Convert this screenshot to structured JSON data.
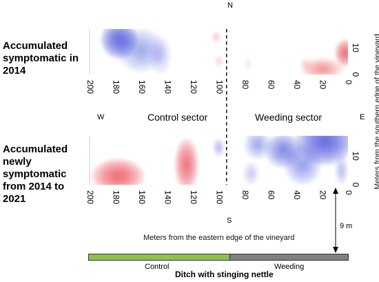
{
  "compass": {
    "north": "N",
    "south": "S",
    "west": "W",
    "east": "E"
  },
  "panels": [
    {
      "label_lines": [
        "Accumulated",
        "symptomatic in",
        "2014"
      ]
    },
    {
      "label_lines": [
        "Accumulated",
        "newly",
        "symptomatic",
        "from 2014 to",
        "2021"
      ]
    }
  ],
  "sectors": {
    "control": "Control sector",
    "weeding": "Weeding sector"
  },
  "axes": {
    "x_label": "Meters from the eastern edge of the vineyard",
    "y_label": "Meters from the southern edge of the vineyard",
    "x_ticks": [
      200,
      180,
      160,
      140,
      120,
      100,
      80,
      60,
      40,
      20,
      0
    ],
    "y_ticks": [
      0,
      10
    ],
    "xlim": [
      200,
      0
    ],
    "ylim": [
      0,
      17
    ],
    "divider_x": 94
  },
  "bottom_bar": {
    "control_label": "Control",
    "weeding_label": "Weeding",
    "ditch_label": "Ditch with stinging nettle",
    "distance_label": "9 m",
    "control_color": "#8bc34a",
    "weeding_color": "#808080"
  },
  "colors": {
    "positive": "#e8404a",
    "negative": "#3f4fdb"
  },
  "chart_data": [
    {
      "type": "heatmap",
      "title": "Accumulated symptomatic in 2014",
      "xlim": [
        200,
        0
      ],
      "ylim": [
        0,
        17
      ],
      "hotspots": [
        {
          "x": 177,
          "y": 13,
          "sign": -1,
          "intensity": 1.0,
          "rx": 14,
          "ry": 7
        },
        {
          "x": 160,
          "y": 9,
          "sign": -1,
          "intensity": 0.45,
          "rx": 18,
          "ry": 8
        },
        {
          "x": 145,
          "y": 7,
          "sign": -1,
          "intensity": 0.25,
          "rx": 8,
          "ry": 7
        },
        {
          "x": 102,
          "y": 14,
          "sign": 1,
          "intensity": 0.3,
          "rx": 3,
          "ry": 2
        },
        {
          "x": 100,
          "y": 5,
          "sign": 1,
          "intensity": 0.25,
          "rx": 3,
          "ry": 2
        },
        {
          "x": 77,
          "y": 4,
          "sign": 1,
          "intensity": 0.2,
          "rx": 2,
          "ry": 2
        },
        {
          "x": 2,
          "y": 8,
          "sign": 1,
          "intensity": 0.9,
          "rx": 8,
          "ry": 5
        },
        {
          "x": 20,
          "y": 2,
          "sign": 1,
          "intensity": 0.55,
          "rx": 16,
          "ry": 4
        },
        {
          "x": 33,
          "y": 4,
          "sign": 1,
          "intensity": 0.2,
          "rx": 4,
          "ry": 2
        }
      ]
    },
    {
      "type": "heatmap",
      "title": "Accumulated newly symptomatic from 2014 to 2021",
      "xlim": [
        200,
        0
      ],
      "ylim": [
        0,
        17
      ],
      "hotspots": [
        {
          "x": 178,
          "y": 3,
          "sign": 1,
          "intensity": 0.85,
          "rx": 20,
          "ry": 6
        },
        {
          "x": 125,
          "y": 7,
          "sign": 1,
          "intensity": 0.8,
          "rx": 9,
          "ry": 9
        },
        {
          "x": 100,
          "y": 13,
          "sign": -1,
          "intensity": 0.35,
          "rx": 4,
          "ry": 3
        },
        {
          "x": 18,
          "y": 15,
          "sign": -1,
          "intensity": 1.0,
          "rx": 22,
          "ry": 8
        },
        {
          "x": 50,
          "y": 12,
          "sign": -1,
          "intensity": 0.7,
          "rx": 14,
          "ry": 6
        },
        {
          "x": 70,
          "y": 14,
          "sign": -1,
          "intensity": 0.45,
          "rx": 10,
          "ry": 5
        },
        {
          "x": 35,
          "y": 7,
          "sign": -1,
          "intensity": 0.55,
          "rx": 14,
          "ry": 7
        },
        {
          "x": 75,
          "y": 4,
          "sign": -1,
          "intensity": 0.25,
          "rx": 6,
          "ry": 4
        },
        {
          "x": 5,
          "y": 5,
          "sign": -1,
          "intensity": 0.3,
          "rx": 5,
          "ry": 5
        }
      ]
    }
  ]
}
